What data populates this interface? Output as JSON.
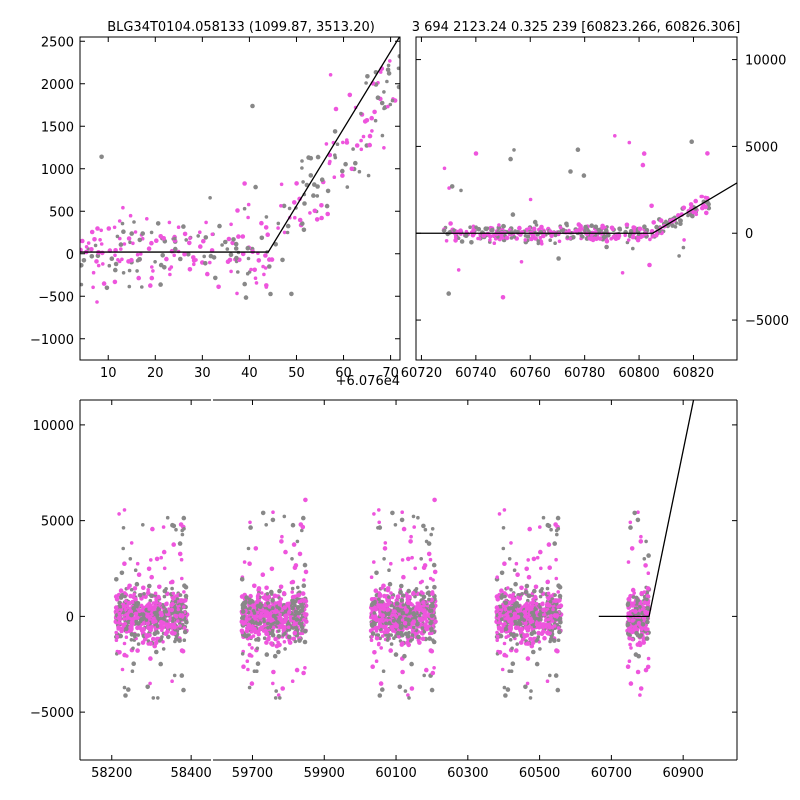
{
  "titles": {
    "left": "BLG34T0104.058133 (1099.87, 3513.20)",
    "right": "3 694 2123.24 0.325 239 [60823.266, 60826.306]"
  },
  "colors": {
    "highlight": "#ee55dd",
    "background_points": "#888888",
    "model_line": "#000000"
  },
  "chart_data": [
    {
      "id": "zoom-left",
      "type": "scatter",
      "xlabel": "",
      "ylabel": "",
      "offset_label": "+6.076e4",
      "xlim": [
        4,
        72
      ],
      "ylim": [
        -1250,
        2550
      ],
      "xticks": [
        10,
        20,
        30,
        40,
        50,
        60,
        70
      ],
      "yticks": [
        -1000,
        -500,
        0,
        500,
        1000,
        1500,
        2000,
        2500
      ],
      "xtick_labels": [
        "10",
        "20",
        "30",
        "40",
        "50",
        "60",
        "70"
      ],
      "ytick_labels": [
        "−1000",
        "−500",
        "0",
        "500",
        "1000",
        "1500",
        "2000",
        "2500"
      ],
      "model": {
        "x": [
          4,
          44,
          72
        ],
        "y": [
          20,
          20,
          2560
        ]
      }
    },
    {
      "id": "zoom-right",
      "type": "scatter",
      "xlabel": "",
      "ylabel": "",
      "xlim": [
        60718,
        60836
      ],
      "ylim": [
        -7300,
        11300
      ],
      "xticks": [
        60720,
        60740,
        60760,
        60780,
        60800,
        60820
      ],
      "yticks": [
        -5000,
        0,
        5000,
        10000
      ],
      "xtick_labels": [
        "60720",
        "60740",
        "60760",
        "60780",
        "60800",
        "60820"
      ],
      "ytick_labels": [
        "−5000",
        "0",
        "5000",
        "10000"
      ],
      "model": {
        "x": [
          60718,
          60805,
          60836
        ],
        "y": [
          0,
          0,
          2900
        ]
      }
    },
    {
      "id": "full-lightcurve",
      "type": "scatter",
      "xlabel": "",
      "ylabel": "",
      "broken_x_axis": true,
      "segments": [
        {
          "xlim": [
            58120,
            58450
          ],
          "xticks": [
            58200,
            58400
          ],
          "xtick_labels": [
            "58200",
            "58400"
          ],
          "season_center": 58300
        },
        {
          "xlim": [
            59590,
            61050
          ],
          "xticks": [
            59700,
            59900,
            60100,
            60300,
            60500,
            60700,
            60900
          ],
          "xtick_labels": [
            "59700",
            "59900",
            "60100",
            "60300",
            "60500",
            "60700",
            "60900"
          ],
          "season_centers": [
            59760,
            60120,
            60470,
            60775
          ]
        }
      ],
      "ylim": [
        -7500,
        11300
      ],
      "yticks": [
        -5000,
        0,
        5000,
        10000
      ],
      "ytick_labels": [
        "−5000",
        "0",
        "5000",
        "10000"
      ],
      "model": {
        "x": [
          60665,
          60805,
          60930
        ],
        "y": [
          0,
          0,
          11400
        ]
      }
    }
  ]
}
